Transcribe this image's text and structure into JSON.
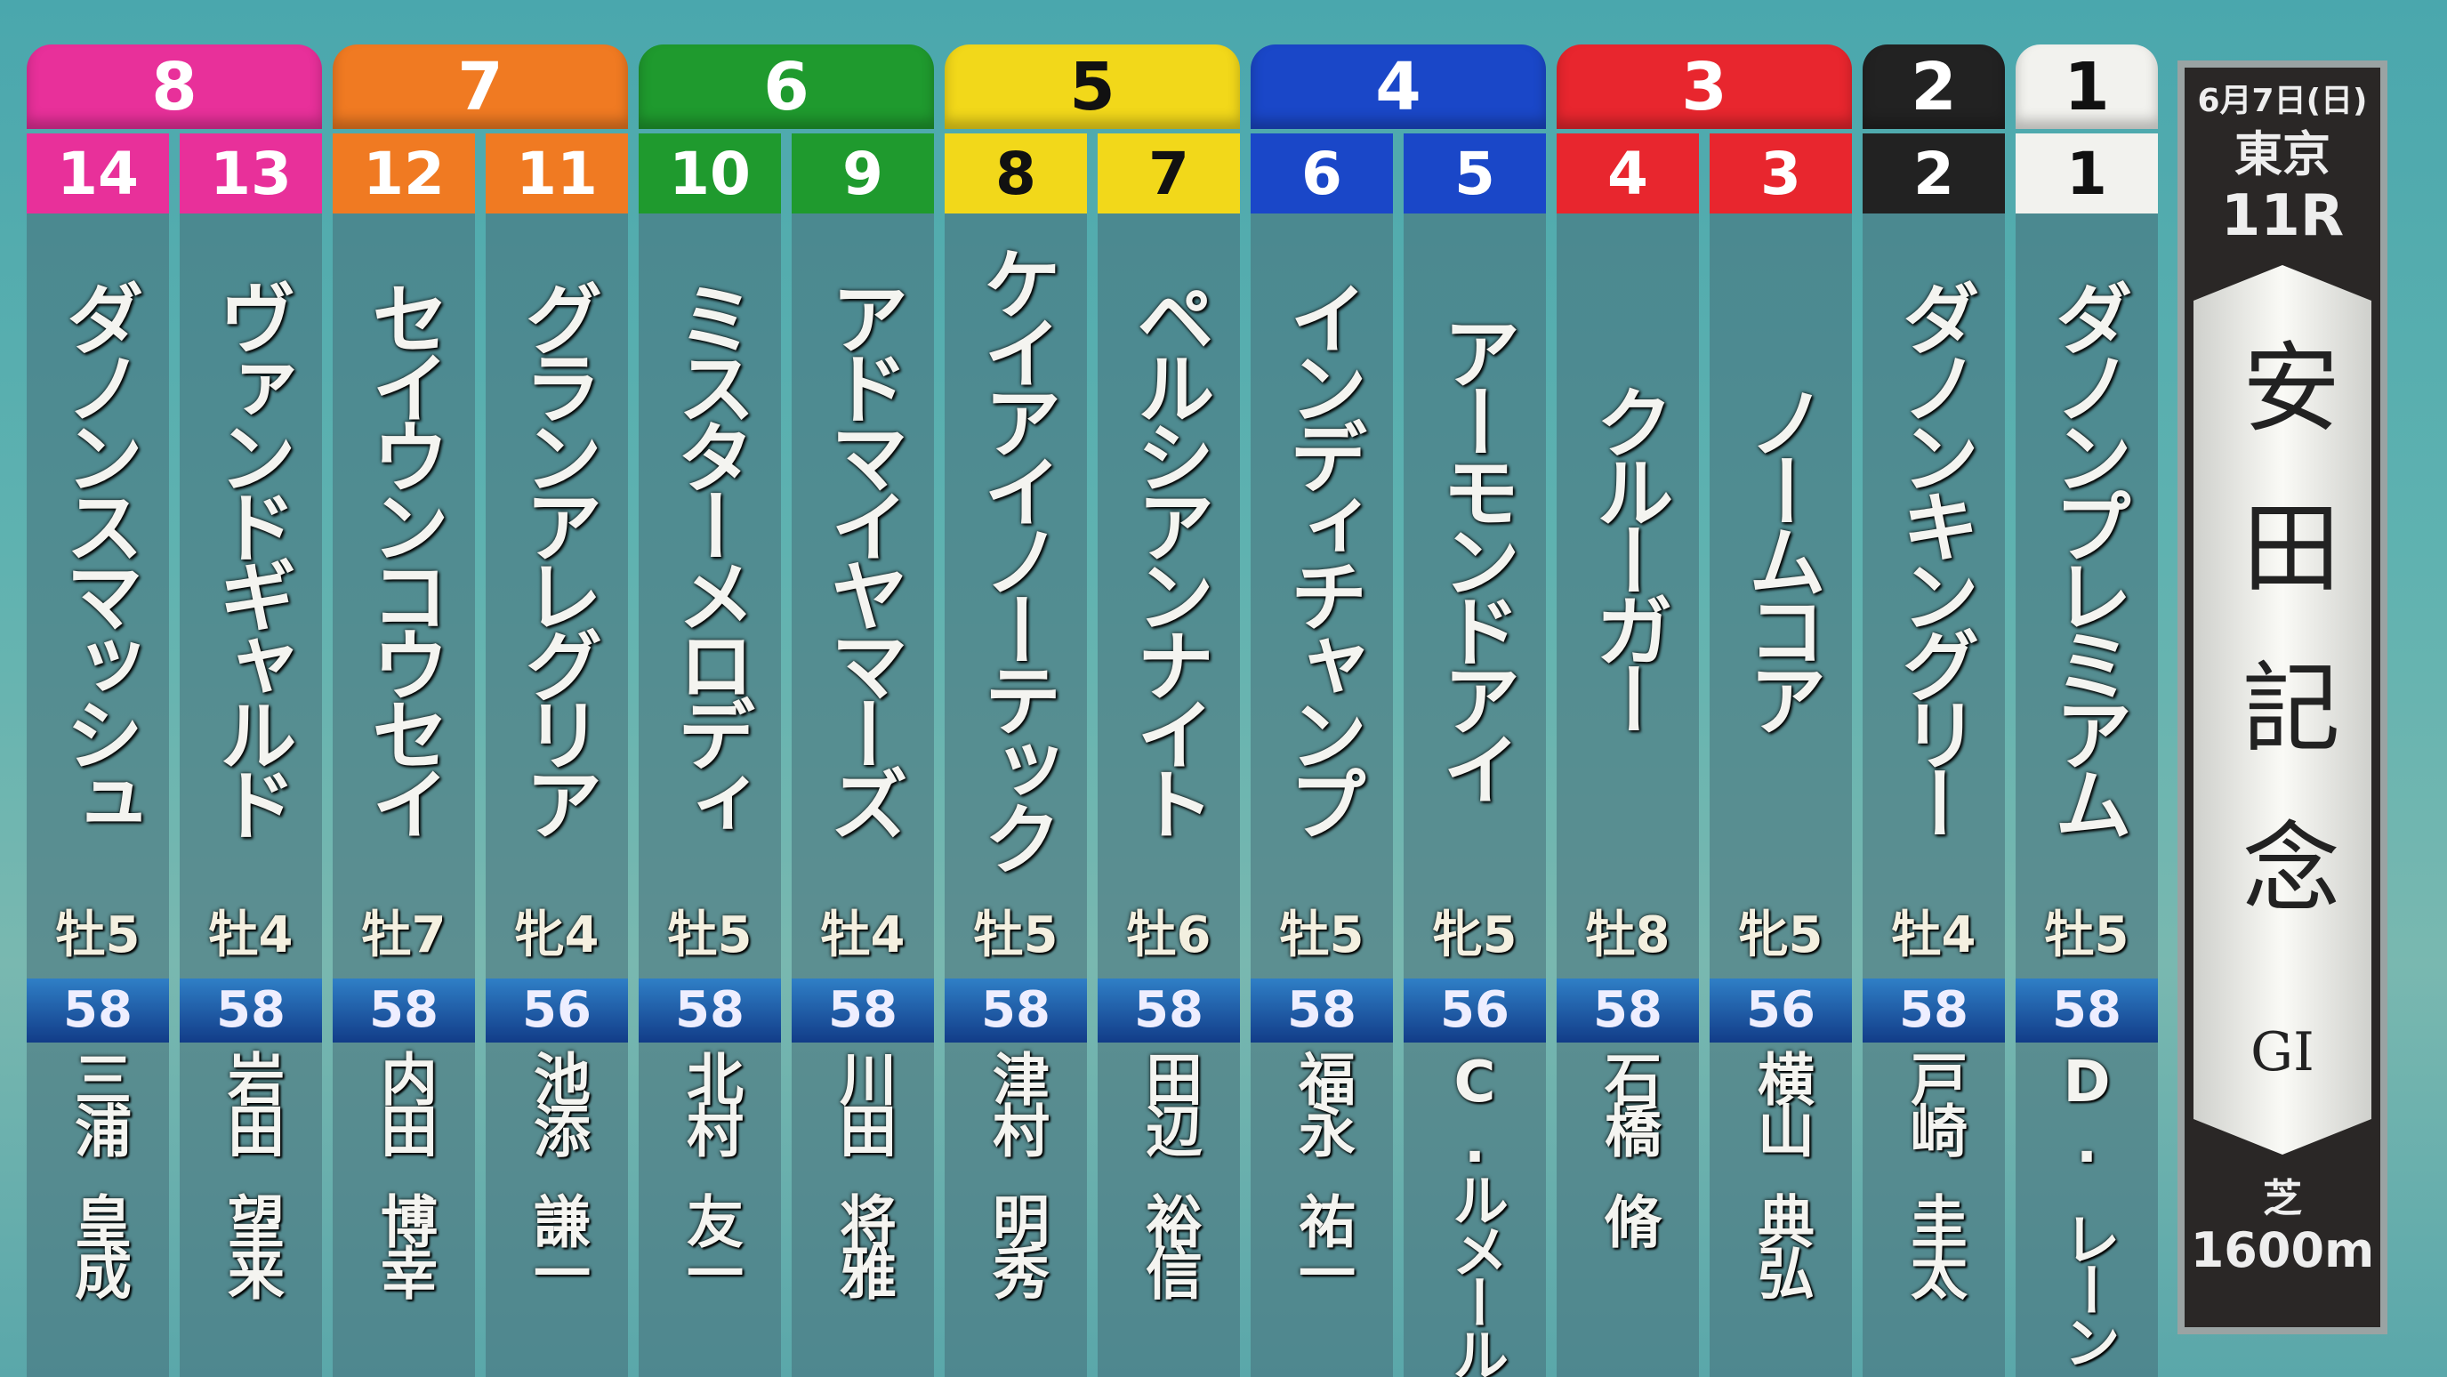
{
  "race": {
    "date": "6月7日(日)",
    "venue": "東京",
    "race_no": "11R",
    "title": "安田記念",
    "grade": "GI",
    "surface": "芝",
    "distance": "1600m"
  },
  "gate_colors": {
    "1": {
      "bg": "#f2f2ee",
      "fg": "#111111"
    },
    "2": {
      "bg": "#222222",
      "fg": "#ffffff"
    },
    "3": {
      "bg": "#e8262e",
      "fg": "#ffffff"
    },
    "4": {
      "bg": "#1a47c8",
      "fg": "#ffffff"
    },
    "5": {
      "bg": "#f2d81a",
      "fg": "#111111"
    },
    "6": {
      "bg": "#1f9a2e",
      "fg": "#ffffff"
    },
    "7": {
      "bg": "#f07a22",
      "fg": "#ffffff"
    },
    "8": {
      "bg": "#e8309a",
      "fg": "#ffffff"
    }
  },
  "horses": [
    {
      "gate": 8,
      "number": 14,
      "name": "ダノンスマッシュ",
      "sex_age": "牡5",
      "weight": "58",
      "jockey": [
        "三浦",
        "皇成"
      ]
    },
    {
      "gate": 8,
      "number": 13,
      "name": "ヴァンドギャルド",
      "sex_age": "牡4",
      "weight": "58",
      "jockey": [
        "岩田",
        "望来"
      ]
    },
    {
      "gate": 7,
      "number": 12,
      "name": "セイウンコウセイ",
      "sex_age": "牡7",
      "weight": "58",
      "jockey": [
        "内田",
        "博幸"
      ]
    },
    {
      "gate": 7,
      "number": 11,
      "name": "グランアレグリア",
      "sex_age": "牝4",
      "weight": "56",
      "jockey": [
        "池添",
        "謙一"
      ]
    },
    {
      "gate": 6,
      "number": 10,
      "name": "ミスターメロディ",
      "sex_age": "牡5",
      "weight": "58",
      "jockey": [
        "北村",
        "友一"
      ]
    },
    {
      "gate": 6,
      "number": 9,
      "name": "アドマイヤマーズ",
      "sex_age": "牡4",
      "weight": "58",
      "jockey": [
        "川田",
        "将雅"
      ]
    },
    {
      "gate": 5,
      "number": 8,
      "name": "ケイアイノーテック",
      "sex_age": "牡5",
      "weight": "58",
      "jockey": [
        "津村",
        "明秀"
      ]
    },
    {
      "gate": 5,
      "number": 7,
      "name": "ペルシアンナイト",
      "sex_age": "牡6",
      "weight": "58",
      "jockey": [
        "田辺",
        "裕信"
      ]
    },
    {
      "gate": 4,
      "number": 6,
      "name": "インディチャンプ",
      "sex_age": "牡5",
      "weight": "58",
      "jockey": [
        "福永",
        "祐一"
      ]
    },
    {
      "gate": 4,
      "number": 5,
      "name": "アーモンドアイ",
      "sex_age": "牝5",
      "weight": "56",
      "jockey": [
        "C.",
        "ルメール"
      ]
    },
    {
      "gate": 3,
      "number": 4,
      "name": "クルーガー",
      "sex_age": "牡8",
      "weight": "58",
      "jockey": [
        "石橋",
        "脩"
      ]
    },
    {
      "gate": 3,
      "number": 3,
      "name": "ノームコア",
      "sex_age": "牝5",
      "weight": "56",
      "jockey": [
        "横山",
        "典弘"
      ]
    },
    {
      "gate": 2,
      "number": 2,
      "name": "ダノンキングリー",
      "sex_age": "牡4",
      "weight": "58",
      "jockey": [
        "戸崎",
        "圭太"
      ]
    },
    {
      "gate": 1,
      "number": 1,
      "name": "ダノンプレミアム",
      "sex_age": "牡5",
      "weight": "58",
      "jockey": [
        "D.",
        "レーン"
      ]
    }
  ]
}
